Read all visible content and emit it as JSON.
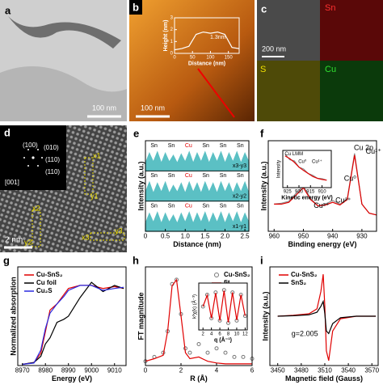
{
  "panels": {
    "a": {
      "label": "a",
      "scale_bar": "100 nm"
    },
    "b": {
      "label": "b",
      "scale_bar": "100 nm"
    },
    "c": {
      "label": "c",
      "scale_bar": "200 nm",
      "maps": [
        "Sn",
        "S",
        "Cu"
      ]
    },
    "d": {
      "label": "d",
      "scale_bar": "2 nm",
      "zone_axis": "[001]",
      "spots": [
        "(100)",
        "(010)",
        "(110)",
        "(110)"
      ],
      "markers": [
        "x1",
        "y1",
        "x2",
        "y2",
        "x3",
        "y3"
      ]
    }
  },
  "chart_data": [
    {
      "type": "line",
      "xlabel": "Distance (nm)",
      "ylabel": "Height (nm)",
      "x": [
        0,
        20,
        40,
        60,
        80,
        100,
        120,
        140,
        160,
        180
      ],
      "xlim": [
        0,
        180
      ],
      "ylim": [
        0,
        3
      ],
      "xticks": [
        0,
        50,
        100,
        150
      ],
      "yticks": [
        0,
        1,
        2,
        3
      ],
      "annotations": [
        "1.3nm"
      ],
      "series": [
        {
          "color": "#ffffff",
          "values": [
            0.3,
            0.4,
            0.6,
            1.6,
            1.8,
            1.7,
            1.8,
            1.6,
            0.5,
            0.4
          ]
        }
      ]
    },
    {
      "type": "area",
      "label": "e",
      "xlabel": "Distance (nm)",
      "ylabel": "Intensity (a.u.)",
      "x": [
        0,
        0.1,
        0.2,
        0.3,
        0.4,
        0.5,
        0.6,
        0.7,
        0.8,
        0.9,
        1.0,
        1.1,
        1.2,
        1.3,
        1.4,
        1.5,
        1.6,
        1.7,
        1.8,
        1.9,
        2.0,
        2.1,
        2.2,
        2.3,
        2.4,
        2.5,
        2.6
      ],
      "xlim": [
        0,
        2.6
      ],
      "ylim": [
        0,
        1
      ],
      "xticks": [
        0,
        0.5,
        {
          "value": 1,
          "label": "1.0"
        },
        1.5,
        {
          "value": 2,
          "label": "2.0"
        },
        2.5
      ],
      "series": [
        {
          "name": "x3-y3",
          "color": "#5bc0c4",
          "peak_labels": [
            {
              "text": "Sn",
              "color": "#000000"
            },
            {
              "text": "Sn",
              "color": "#000000"
            },
            {
              "text": "Cu",
              "color": "#e00000"
            },
            {
              "text": "Sn",
              "color": "#000000"
            },
            {
              "text": "Sn",
              "color": "#000000"
            },
            {
              "text": "Sn",
              "color": "#000000"
            }
          ],
          "values": [
            0.35,
            0.8,
            0.4,
            0.85,
            0.35,
            0.8,
            0.4,
            0.7,
            0.35,
            0.75,
            0.4,
            0.85,
            0.35,
            0.8,
            0.4,
            0.85,
            0.35,
            0.8,
            0.4,
            0.85,
            0.35,
            0.8,
            0.4,
            0.85,
            0.35,
            0.8,
            0.4
          ]
        },
        {
          "name": "x2-y2",
          "color": "#5bc0c4",
          "peak_labels": [
            {
              "text": "Sn",
              "color": "#000000"
            },
            {
              "text": "Sn",
              "color": "#000000"
            },
            {
              "text": "Cu",
              "color": "#e00000"
            },
            {
              "text": "Sn",
              "color": "#000000"
            },
            {
              "text": "Sn",
              "color": "#000000"
            },
            {
              "text": "Sn",
              "color": "#000000"
            }
          ],
          "values": [
            0.4,
            0.85,
            0.35,
            0.8,
            0.4,
            0.85,
            0.35,
            0.7,
            0.4,
            0.8,
            0.35,
            0.85,
            0.4,
            0.8,
            0.35,
            0.85,
            0.4,
            0.8,
            0.35,
            0.85,
            0.4,
            0.8,
            0.35,
            0.8,
            0.4,
            0.85,
            0.35
          ]
        },
        {
          "name": "x1-y1",
          "color": "#5bc0c4",
          "peak_labels": [
            {
              "text": "Sn",
              "color": "#000000"
            },
            {
              "text": "Sn",
              "color": "#000000"
            },
            {
              "text": "Cu",
              "color": "#e00000"
            },
            {
              "text": "Sn",
              "color": "#000000"
            },
            {
              "text": "Sn",
              "color": "#000000"
            },
            {
              "text": "Sn",
              "color": "#000000"
            }
          ],
          "values": [
            0.35,
            0.8,
            0.4,
            0.85,
            0.35,
            0.8,
            0.4,
            0.72,
            0.35,
            0.8,
            0.4,
            0.85,
            0.35,
            0.8,
            0.4,
            0.85,
            0.35,
            0.8,
            0.4,
            0.85,
            0.35,
            0.8,
            0.4,
            0.85,
            0.35,
            0.8,
            0.4
          ]
        }
      ]
    },
    {
      "type": "line",
      "label": "f",
      "xlabel": "Binding energy (eV)",
      "ylabel": "Intensity (a.u.)",
      "x": [
        960,
        957.5,
        955,
        952.5,
        950,
        947.5,
        945,
        942.5,
        940,
        937.5,
        935,
        932.5,
        930,
        927.5,
        925
      ],
      "xlim": [
        962,
        925
      ],
      "ylim": [
        0,
        1
      ],
      "xticks": [
        960,
        950,
        940,
        930
      ],
      "annotations": [
        "Cu 2p",
        "Cu⁰",
        "Cu¹⁺",
        "Cu²⁺",
        "Cu²⁺"
      ],
      "series": [
        {
          "color": "#8c8c8c",
          "values": [
            0.3,
            0.31,
            0.33,
            0.42,
            0.5,
            0.36,
            0.28,
            0.3,
            0.34,
            0.3,
            0.36,
            0.86,
            0.3,
            0.2,
            0.18
          ]
        },
        {
          "color": "#e00000",
          "values": [
            0.3,
            0.3,
            0.32,
            0.4,
            0.48,
            0.35,
            0.28,
            0.29,
            0.32,
            0.29,
            0.35,
            0.84,
            0.3,
            0.2,
            0.18
          ]
        }
      ]
    },
    {
      "type": "line",
      "xlabel": "Kinetic energy (eV)",
      "ylabel": "Intensity",
      "x": [
        926,
        924,
        922,
        920,
        918,
        916,
        914,
        912,
        910,
        908
      ],
      "xlim": [
        927,
        906
      ],
      "ylim": [
        0,
        1
      ],
      "xticks": [
        925,
        920,
        915,
        910
      ],
      "annotations": [
        "Cu LMM",
        "Cu⁰",
        "Cu¹⁺"
      ],
      "series": [
        {
          "color": "#8c8c8c",
          "values": [
            0.9,
            0.75,
            0.72,
            0.55,
            0.5,
            0.38,
            0.33,
            0.25,
            0.24,
            0.2
          ]
        },
        {
          "color": "#e00000",
          "values": [
            0.85,
            0.78,
            0.68,
            0.55,
            0.46,
            0.38,
            0.3,
            0.25,
            0.22,
            0.2
          ]
        }
      ]
    },
    {
      "type": "line",
      "label": "g",
      "xlabel": "Energy (eV)",
      "ylabel": "Normalized absorption",
      "legend": true,
      "x": [
        8970,
        8975,
        8978,
        8980,
        8982,
        8985,
        8988,
        8990,
        8995,
        9000,
        9005,
        9010,
        9014
      ],
      "xlim": [
        8968,
        9015
      ],
      "ylim": [
        0,
        1.6
      ],
      "xticks": [
        8970,
        8980,
        8990,
        9000,
        9010
      ],
      "series": [
        {
          "name": "Cu-SnS₂",
          "color": "#e00000",
          "values": [
            0.02,
            0.05,
            0.2,
            0.55,
            0.9,
            1.0,
            1.15,
            1.25,
            1.3,
            1.3,
            1.25,
            1.28,
            1.25
          ]
        },
        {
          "name": "Cu foil",
          "color": "#000000",
          "values": [
            0.02,
            0.05,
            0.15,
            0.35,
            0.45,
            0.7,
            0.75,
            0.8,
            1.1,
            1.35,
            1.2,
            1.3,
            1.25
          ]
        },
        {
          "name": "Cu₂S",
          "color": "#2a2ae0",
          "values": [
            0.02,
            0.04,
            0.25,
            0.6,
            0.85,
            1.0,
            1.12,
            1.22,
            1.3,
            1.3,
            1.22,
            1.25,
            1.27
          ]
        }
      ]
    },
    {
      "type": "line",
      "label": "h",
      "xlabel": "R (Å)",
      "ylabel": "FT magnitude",
      "legend": true,
      "x": [
        0,
        0.5,
        1,
        1.25,
        1.5,
        1.75,
        2,
        2.25,
        2.5,
        3,
        3.5,
        4,
        4.5,
        5,
        5.5,
        6
      ],
      "xlim": [
        0,
        6
      ],
      "ylim": [
        0,
        1.15
      ],
      "xticks": [
        0,
        2,
        4,
        6
      ],
      "series": [
        {
          "name": "Cu-SnS₂",
          "style": "markers",
          "color": "#777777",
          "values": [
            0.05,
            0.1,
            0.15,
            0.4,
            0.95,
            1.0,
            0.6,
            0.2,
            0.15,
            0.25,
            0.15,
            0.2,
            0.15,
            0.1,
            0.1,
            0.08
          ]
        },
        {
          "name": "fit",
          "color": "#e00000",
          "values": [
            0.05,
            0.08,
            0.12,
            0.4,
            0.93,
            1.0,
            0.58,
            0.15,
            0.08,
            0.1,
            0.05,
            0.03,
            0.02,
            0.02,
            0.02,
            0.02
          ]
        }
      ]
    },
    {
      "type": "line",
      "xlabel": "q (Å⁻¹)",
      "ylabel": "k³χ(k) (Å⁻³)",
      "x": [
        2,
        3,
        4,
        5,
        6,
        7,
        8,
        9,
        10,
        11,
        12
      ],
      "xlim": [
        1,
        12.5
      ],
      "ylim": [
        -1,
        1
      ],
      "xticks": [
        2,
        4,
        6,
        8,
        10,
        12
      ],
      "series": [
        {
          "style": "markers",
          "color": "#777777",
          "values": [
            0,
            0.5,
            -0.5,
            0.6,
            -0.6,
            0.7,
            -0.7,
            0.6,
            -0.6,
            0.5,
            -0.4
          ]
        },
        {
          "color": "#e00000",
          "values": [
            0,
            0.48,
            -0.5,
            0.58,
            -0.6,
            0.68,
            -0.68,
            0.6,
            -0.58,
            0.5,
            -0.4
          ]
        }
      ]
    },
    {
      "type": "line",
      "label": "i",
      "xlabel": "Magnetic field (Gauss)",
      "ylabel": "Intensity (a.u.)",
      "legend": true,
      "x": [
        3450,
        3470,
        3490,
        3500,
        3505,
        3508,
        3510,
        3512,
        3515,
        3520,
        3530,
        3550,
        3575
      ],
      "xlim": [
        3440,
        3578
      ],
      "ylim": [
        -1,
        1
      ],
      "xticks": [
        3450,
        3480,
        3510,
        3540,
        3570
      ],
      "annotations": [
        "g=2.005"
      ],
      "series": [
        {
          "name": "Cu-SnS₂",
          "color": "#e00000",
          "values": [
            0,
            0.02,
            0.05,
            0.15,
            0.5,
            0.85,
            0.2,
            -0.7,
            -0.9,
            -0.3,
            -0.05,
            0,
            0
          ]
        },
        {
          "name": "SnS₂",
          "color": "#000000",
          "values": [
            0,
            0.01,
            0.03,
            0.08,
            0.2,
            0.3,
            0.05,
            -0.3,
            -0.35,
            -0.15,
            -0.03,
            0,
            0
          ]
        }
      ]
    }
  ]
}
